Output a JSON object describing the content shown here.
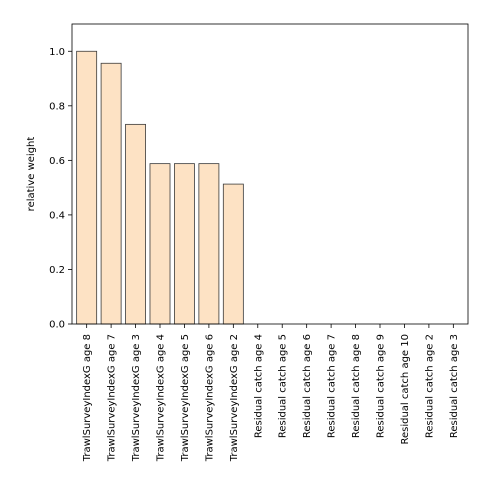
{
  "chart_data": {
    "type": "bar",
    "title": "",
    "xlabel": "",
    "ylabel": "relative weight",
    "ylim": [
      0,
      1.1
    ],
    "yticks": [
      0.0,
      0.2,
      0.4,
      0.6,
      0.8,
      1.0
    ],
    "ytick_labels": [
      "0.0",
      "0.2",
      "0.4",
      "0.6",
      "0.8",
      "1.0"
    ],
    "grid": false,
    "categories": [
      "TrawlSurveyIndexG age 8",
      "TrawlSurveyIndexG age 7",
      "TrawlSurveyIndexG age 3",
      "TrawlSurveyIndexG age 4",
      "TrawlSurveyIndexG age 5",
      "TrawlSurveyIndexG age 6",
      "TrawlSurveyIndexG age 2",
      "Residual catch age 4",
      "Residual catch age 5",
      "Residual catch age 6",
      "Residual catch age 7",
      "Residual catch age 8",
      "Residual catch age 9",
      "Residual catch age 10",
      "Residual catch age 2",
      "Residual catch age 3"
    ],
    "values": [
      1.0,
      0.956,
      0.732,
      0.588,
      0.588,
      0.588,
      0.513,
      0,
      0,
      0,
      0,
      0,
      0,
      0,
      0,
      0
    ],
    "colors": {
      "bar_fill": "#fde2c4",
      "bar_edge": "#3a3a3a",
      "axis": "#000000"
    }
  }
}
